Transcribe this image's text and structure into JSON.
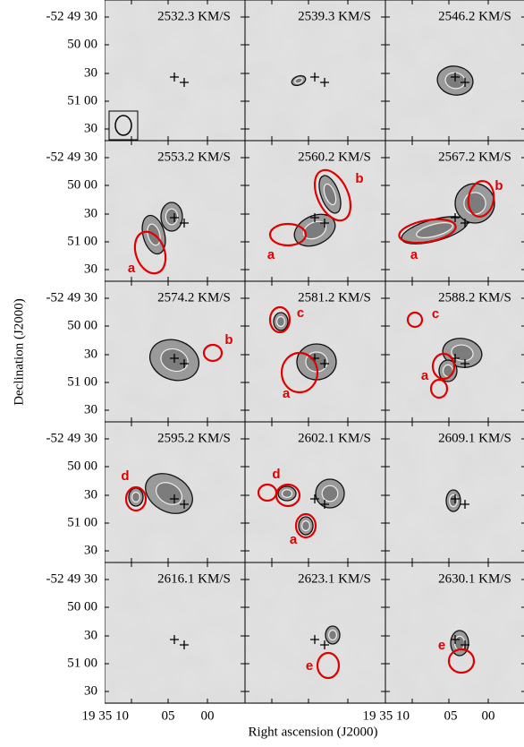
{
  "figure": {
    "y_label": "Declination (J2000)",
    "x_label": "Right ascension (J2000)",
    "y_ticks": [
      "-52 49 30",
      "50 00",
      "30",
      "51 00",
      "30"
    ],
    "x_ticks": [
      "19 35 10",
      "05",
      "00"
    ],
    "panels": [
      {
        "velocity": "2532.3 KM/S",
        "markers": []
      },
      {
        "velocity": "2539.3 KM/S",
        "markers": []
      },
      {
        "velocity": "2546.2 KM/S",
        "markers": []
      },
      {
        "velocity": "2553.2 KM/S",
        "markers": [
          "a"
        ]
      },
      {
        "velocity": "2560.2 KM/S",
        "markers": [
          "a",
          "b"
        ]
      },
      {
        "velocity": "2567.2 KM/S",
        "markers": [
          "a",
          "b"
        ]
      },
      {
        "velocity": "2574.2 KM/S",
        "markers": [
          "b"
        ]
      },
      {
        "velocity": "2581.2 KM/S",
        "markers": [
          "c",
          "a"
        ]
      },
      {
        "velocity": "2588.2 KM/S",
        "markers": [
          "c",
          "a"
        ]
      },
      {
        "velocity": "2595.2 KM/S",
        "markers": [
          "d"
        ]
      },
      {
        "velocity": "2602.1 KM/S",
        "markers": [
          "d",
          "a"
        ]
      },
      {
        "velocity": "2609.1 KM/S",
        "markers": []
      },
      {
        "velocity": "2616.1 KM/S",
        "markers": []
      },
      {
        "velocity": "2623.1 KM/S",
        "markers": [
          "e"
        ]
      },
      {
        "velocity": "2630.1 KM/S",
        "markers": [
          "e"
        ]
      }
    ]
  }
}
